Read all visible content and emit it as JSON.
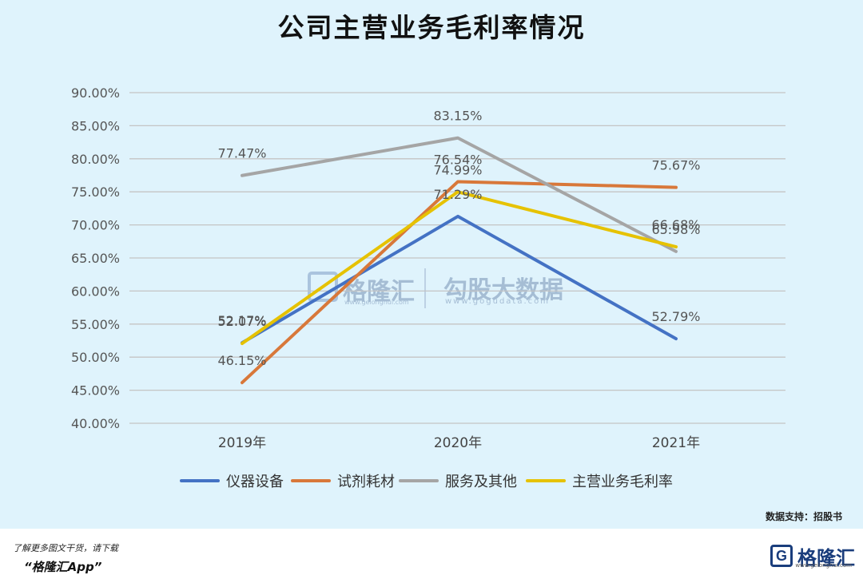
{
  "title": "公司主营业务毛利率情况",
  "source": "数据支持：招股书",
  "footer": {
    "line1": "了解更多图文干货，请下载",
    "line2": "“格隆汇App”"
  },
  "brand": {
    "name": "格隆汇",
    "logo_letter": "G",
    "url": "www.gelonghui.com"
  },
  "watermark": {
    "left_name": "格隆汇",
    "left_url": "www.gelonghui.com",
    "right_name": "勾股大数据",
    "right_url": "www.gogudata.com"
  },
  "chart_data": {
    "type": "line",
    "title": "公司主营业务毛利率情况",
    "categories": [
      "2019年",
      "2020年",
      "2021年"
    ],
    "ylim": [
      40,
      90
    ],
    "ytick_step": 5,
    "yticks": [
      "40.00%",
      "45.00%",
      "50.00%",
      "55.00%",
      "60.00%",
      "65.00%",
      "70.00%",
      "75.00%",
      "80.00%",
      "85.00%",
      "90.00%"
    ],
    "grid": true,
    "legend_position": "bottom",
    "series": [
      {
        "name": "仪器设备",
        "color": "#4472c4",
        "values": [
          52.17,
          71.29,
          52.79
        ],
        "labels": [
          "52.17%",
          "71.29%",
          "52.79%"
        ]
      },
      {
        "name": "试剂耗材",
        "color": "#d8783a",
        "values": [
          46.15,
          76.54,
          75.67
        ],
        "labels": [
          "46.15%",
          "76.54%",
          "75.67%"
        ]
      },
      {
        "name": "服务及其他",
        "color": "#a5a5a5",
        "values": [
          77.47,
          83.15,
          65.98
        ],
        "labels": [
          "77.47%",
          "83.15%",
          "65.98%"
        ]
      },
      {
        "name": "主营业务毛利率",
        "color": "#e6c200",
        "values": [
          52.07,
          74.99,
          66.68
        ],
        "labels": [
          "52.07%",
          "74.99%",
          "66.68%"
        ]
      }
    ]
  }
}
